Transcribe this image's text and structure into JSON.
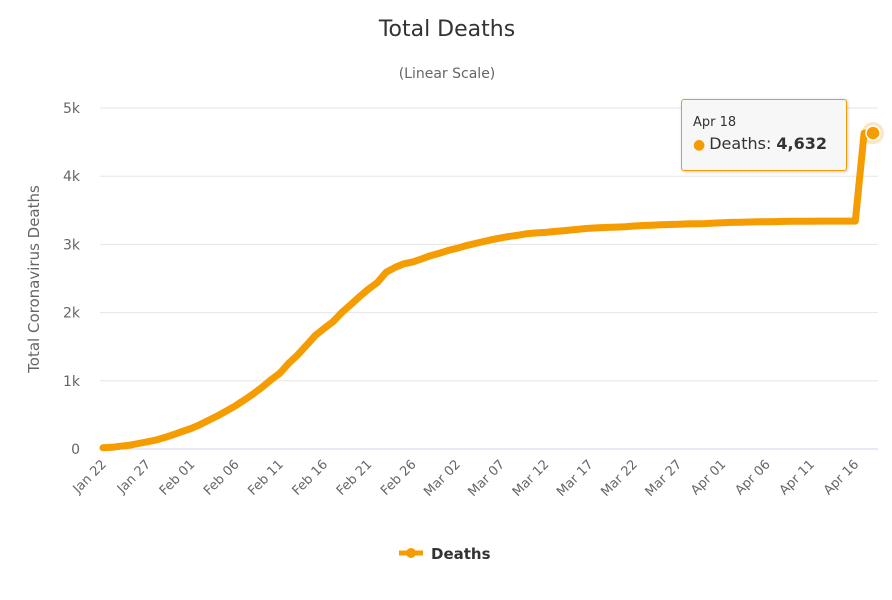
{
  "chart_data": {
    "type": "line",
    "title": "Total Deaths",
    "subtitle": "(Linear Scale)",
    "ylabel": "Total Coronavirus Deaths",
    "xlabel": "",
    "ylim": [
      0,
      5000
    ],
    "yticks": [
      {
        "v": 0,
        "label": "0"
      },
      {
        "v": 1000,
        "label": "1k"
      },
      {
        "v": 2000,
        "label": "2k"
      },
      {
        "v": 3000,
        "label": "3k"
      },
      {
        "v": 4000,
        "label": "4k"
      },
      {
        "v": 5000,
        "label": "5k"
      }
    ],
    "xtick_labels": [
      "Jan 22",
      "Jan 27",
      "Feb 01",
      "Feb 06",
      "Feb 11",
      "Feb 16",
      "Feb 21",
      "Feb 26",
      "Mar 02",
      "Mar 07",
      "Mar 12",
      "Mar 17",
      "Mar 22",
      "Mar 27",
      "Apr 01",
      "Apr 06",
      "Apr 11",
      "Apr 16"
    ],
    "xtick_every": 5,
    "grid": true,
    "legend": {
      "position": "bottom-center",
      "entries": [
        "Deaths"
      ]
    },
    "series": [
      {
        "name": "Deaths",
        "color": "#f59c00",
        "start_date": "Jan 22",
        "values": [
          17,
          25,
          41,
          56,
          80,
          106,
          132,
          170,
          213,
          259,
          304,
          361,
          425,
          490,
          562,
          636,
          722,
          811,
          908,
          1016,
          1113,
          1259,
          1380,
          1523,
          1665,
          1770,
          1868,
          2004,
          2118,
          2236,
          2345,
          2442,
          2592,
          2663,
          2715,
          2744,
          2788,
          2835,
          2870,
          2912,
          2943,
          2981,
          3012,
          3042,
          3070,
          3097,
          3119,
          3136,
          3158,
          3169,
          3176,
          3189,
          3199,
          3213,
          3226,
          3237,
          3245,
          3249,
          3253,
          3259,
          3270,
          3277,
          3281,
          3287,
          3292,
          3295,
          3300,
          3304,
          3305,
          3312,
          3318,
          3322,
          3326,
          3329,
          3331,
          3333,
          3335,
          3337,
          3339,
          3339,
          3339,
          3341,
          3341,
          3341,
          3342,
          3342,
          4632,
          4632
        ]
      }
    ],
    "tooltip": {
      "date": "Apr 18",
      "series": "Deaths",
      "sep": ":",
      "value": "4,632"
    }
  }
}
